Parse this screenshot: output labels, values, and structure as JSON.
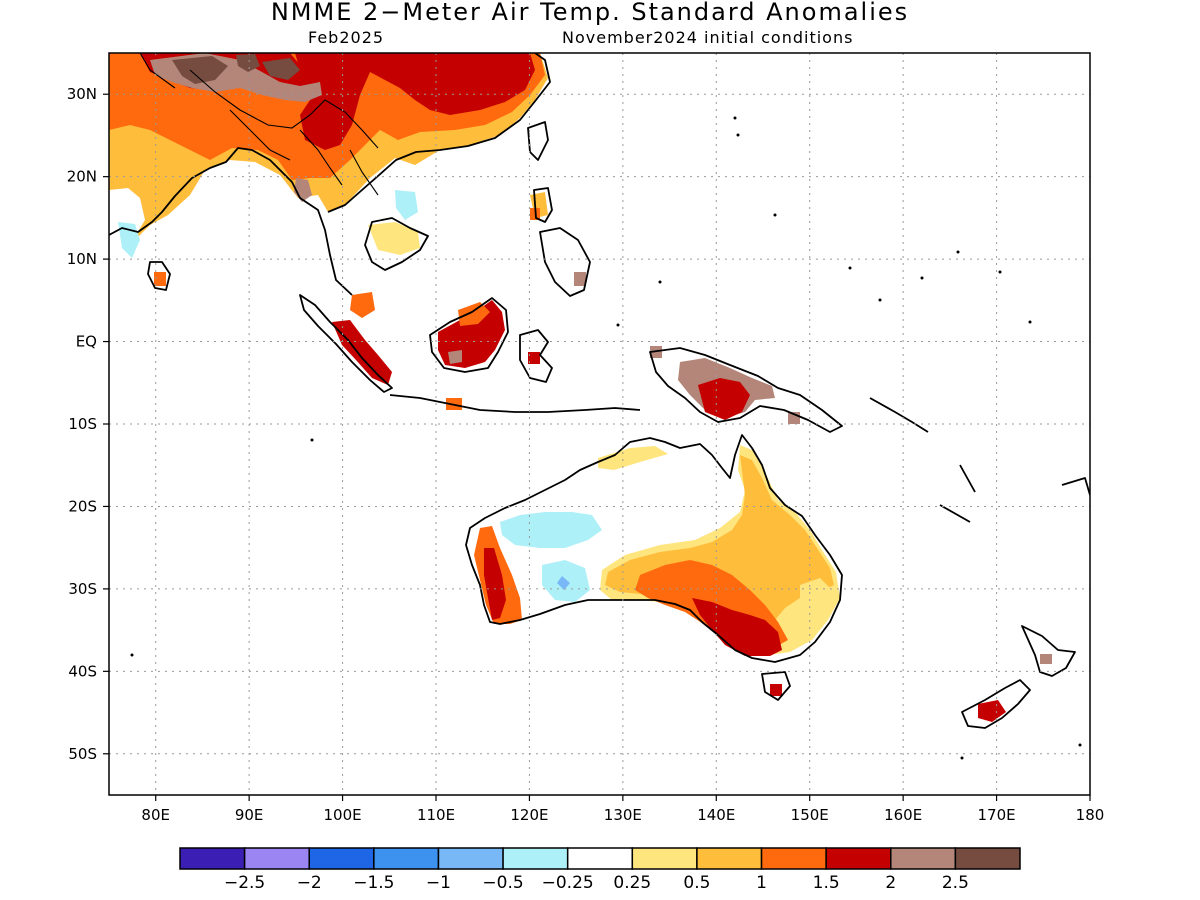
{
  "title": "NMME 2−Meter Air Temp. Standard Anomalies",
  "target_month": "Feb2025",
  "initial_conditions": "November2024 initial conditions",
  "map": {
    "lon_range": [
      75,
      180
    ],
    "lat_range": [
      -55,
      35
    ],
    "lon_ticks": [
      {
        "v": 80,
        "label": "80E"
      },
      {
        "v": 90,
        "label": "90E"
      },
      {
        "v": 100,
        "label": "100E"
      },
      {
        "v": 110,
        "label": "110E"
      },
      {
        "v": 120,
        "label": "120E"
      },
      {
        "v": 130,
        "label": "130E"
      },
      {
        "v": 140,
        "label": "140E"
      },
      {
        "v": 150,
        "label": "150E"
      },
      {
        "v": 160,
        "label": "160E"
      },
      {
        "v": 170,
        "label": "170E"
      },
      {
        "v": 180,
        "label": "180"
      }
    ],
    "lat_ticks": [
      {
        "v": 30,
        "label": "30N"
      },
      {
        "v": 20,
        "label": "20N"
      },
      {
        "v": 10,
        "label": "10N"
      },
      {
        "v": 0,
        "label": "EQ"
      },
      {
        "v": -10,
        "label": "10S"
      },
      {
        "v": -20,
        "label": "20S"
      },
      {
        "v": -30,
        "label": "30S"
      },
      {
        "v": -40,
        "label": "40S"
      },
      {
        "v": -50,
        "label": "50S"
      }
    ],
    "grid": true
  },
  "colorbar": {
    "colors": [
      "#3b1fb5",
      "#9a85f2",
      "#1f66e6",
      "#3d92f0",
      "#78b8f7",
      "#aef0f7",
      "#ffffff",
      "#ffe57e",
      "#ffbd3c",
      "#ff6a0f",
      "#c40000",
      "#b38679",
      "#754c3f"
    ],
    "labels": [
      "−2.5",
      "−2",
      "−1.5",
      "−1",
      "−0.5",
      "−0.25",
      "0.25",
      "0.5",
      "1",
      "1.5",
      "2",
      "2.5"
    ]
  }
}
